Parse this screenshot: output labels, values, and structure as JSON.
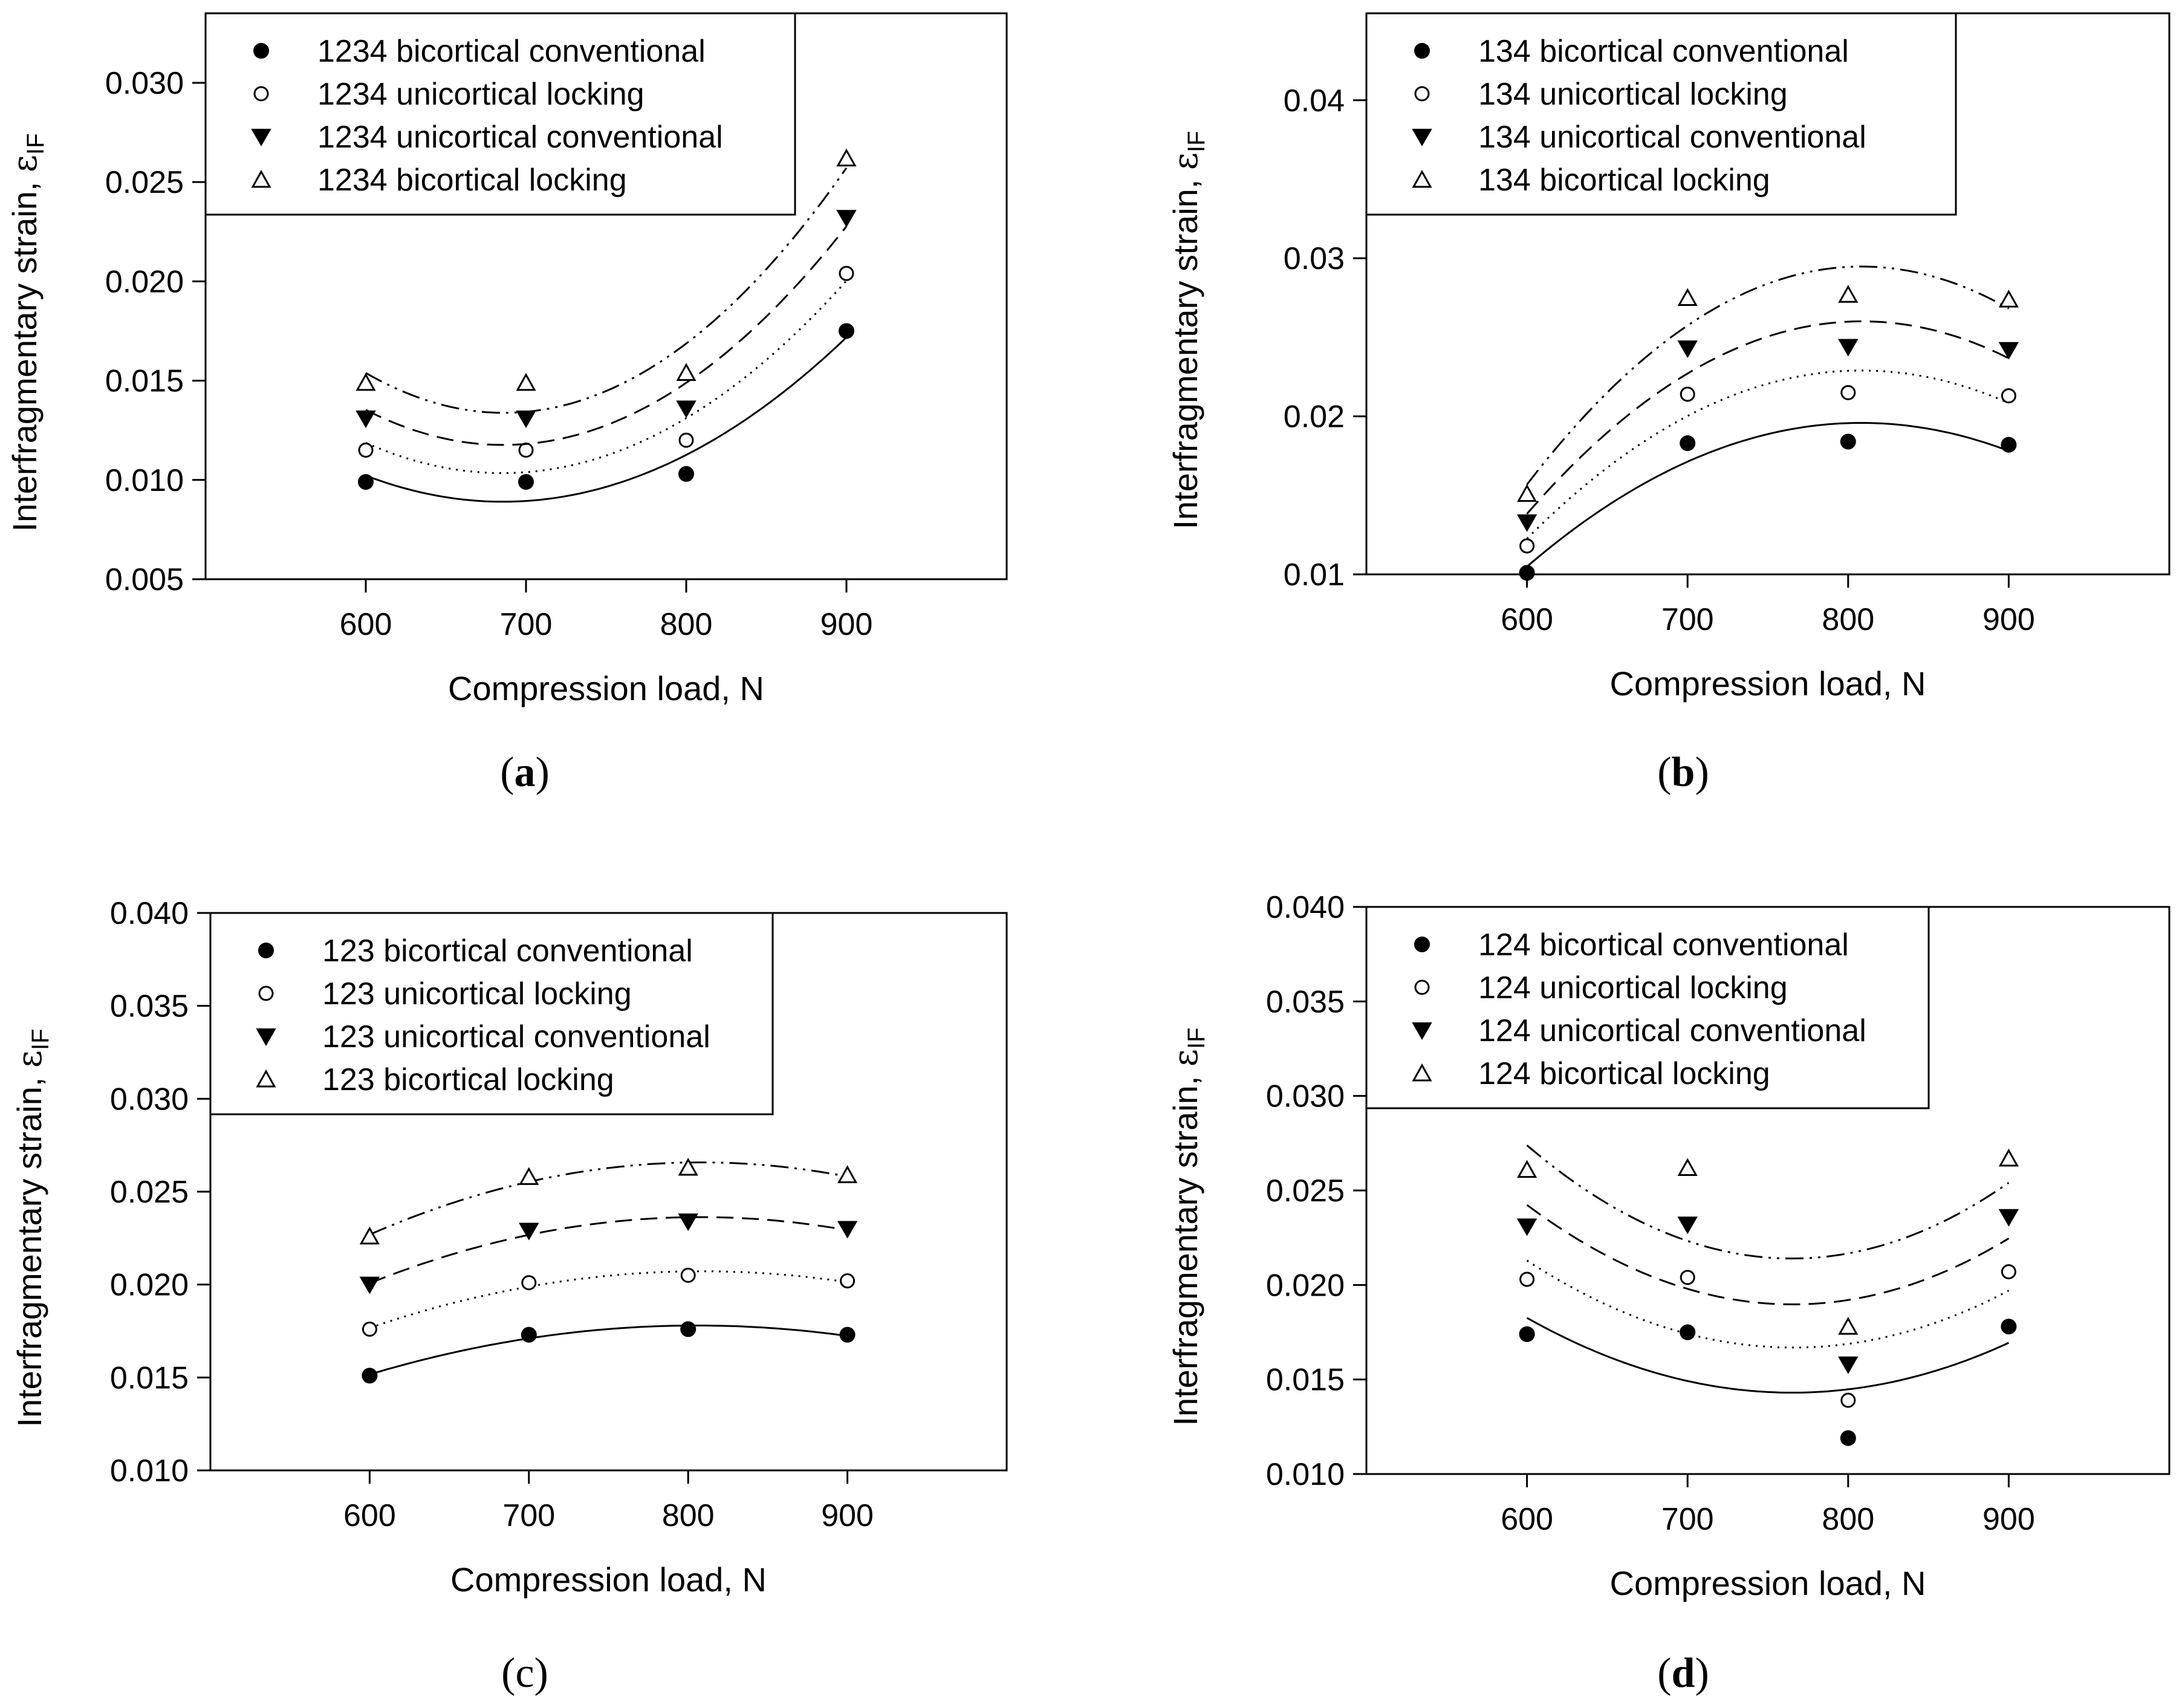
{
  "chart_data": [
    {
      "type": "scatter",
      "panel_label": "a",
      "xlabel": "Compression load, N",
      "ylabel_main": "Interfragmentary strain, ",
      "ylabel_symbol": "ε",
      "ylabel_sub": "IF",
      "x": [
        600,
        700,
        800,
        900
      ],
      "x_ticks": [
        600,
        700,
        800,
        900
      ],
      "y_ticks": [
        0.005,
        0.01,
        0.015,
        0.02,
        0.025,
        0.03
      ],
      "y_tick_labels": [
        "0.005",
        "0.010",
        "0.015",
        "0.020",
        "0.025",
        "0.030"
      ],
      "xlim": [
        500,
        1000
      ],
      "ylim": [
        0.005,
        0.0335
      ],
      "legend_position": "top-left",
      "series": [
        {
          "name": "1234 bicortical conventional",
          "marker": "filled-circle",
          "line": "solid",
          "values": [
            0.0099,
            0.0099,
            0.0103,
            0.0175
          ]
        },
        {
          "name": "1234 unicortical locking",
          "marker": "open-circle",
          "line": "dotted",
          "values": [
            0.0115,
            0.0115,
            0.012,
            0.0204
          ]
        },
        {
          "name": "1234 unicortical conventional",
          "marker": "filled-triangle-down",
          "line": "dashed",
          "values": [
            0.0131,
            0.0131,
            0.0136,
            0.0232
          ]
        },
        {
          "name": "1234 bicortical locking",
          "marker": "open-triangle-up",
          "line": "dash-dot-dot",
          "values": [
            0.0149,
            0.0149,
            0.0154,
            0.0262
          ]
        }
      ]
    },
    {
      "type": "scatter",
      "panel_label": "b",
      "xlabel": "Compression load, N",
      "ylabel_main": "Interfragmentary strain, ",
      "ylabel_symbol": "ε",
      "ylabel_sub": "IF",
      "x": [
        600,
        700,
        800,
        900
      ],
      "x_ticks": [
        600,
        700,
        800,
        900
      ],
      "y_ticks": [
        0.01,
        0.02,
        0.03,
        0.04
      ],
      "y_tick_labels": [
        "0.01",
        "0.02",
        "0.03",
        "0.04"
      ],
      "xlim": [
        500,
        1000
      ],
      "ylim": [
        0.01,
        0.0455
      ],
      "legend_position": "top-left",
      "series": [
        {
          "name": "134 bicortical conventional",
          "marker": "filled-circle",
          "line": "solid",
          "values": [
            0.0101,
            0.0183,
            0.0184,
            0.0182
          ]
        },
        {
          "name": "134 unicortical locking",
          "marker": "open-circle",
          "line": "dotted",
          "values": [
            0.0118,
            0.0214,
            0.0215,
            0.0213
          ]
        },
        {
          "name": "134 unicortical conventional",
          "marker": "filled-triangle-down",
          "line": "dashed",
          "values": [
            0.0133,
            0.0243,
            0.0244,
            0.0242
          ]
        },
        {
          "name": "134 bicortical locking",
          "marker": "open-triangle-up",
          "line": "dash-dot-dot",
          "values": [
            0.0151,
            0.0275,
            0.0277,
            0.0274
          ]
        }
      ]
    },
    {
      "type": "scatter",
      "panel_label": "c",
      "xlabel": "Compression load, N",
      "ylabel_main": "Interfragmentary strain, ",
      "ylabel_symbol": "ε",
      "ylabel_sub": "IF",
      "x": [
        600,
        700,
        800,
        900
      ],
      "x_ticks": [
        600,
        700,
        800,
        900
      ],
      "y_ticks": [
        0.01,
        0.015,
        0.02,
        0.025,
        0.03,
        0.035,
        0.04
      ],
      "y_tick_labels": [
        "0.010",
        "0.015",
        "0.020",
        "0.025",
        "0.030",
        "0.035",
        "0.040"
      ],
      "xlim": [
        500,
        1000
      ],
      "ylim": [
        0.01,
        0.04
      ],
      "legend_position": "top-left",
      "series": [
        {
          "name": "123 bicortical conventional",
          "marker": "filled-circle",
          "line": "solid",
          "values": [
            0.0151,
            0.0173,
            0.0176,
            0.0173
          ]
        },
        {
          "name": "123 unicortical locking",
          "marker": "open-circle",
          "line": "dotted",
          "values": [
            0.0176,
            0.0201,
            0.0205,
            0.0202
          ]
        },
        {
          "name": "123 unicortical conventional",
          "marker": "filled-triangle-down",
          "line": "dashed",
          "values": [
            0.02,
            0.0229,
            0.0234,
            0.023
          ]
        },
        {
          "name": "123 bicortical locking",
          "marker": "open-triangle-up",
          "line": "dash-dot-dot",
          "values": [
            0.0226,
            0.0258,
            0.0263,
            0.0259
          ]
        }
      ]
    },
    {
      "type": "scatter",
      "panel_label": "d",
      "xlabel": "Compression load, N",
      "ylabel_main": "Interfragmentary strain, ",
      "ylabel_symbol": "ε",
      "ylabel_sub": "IF",
      "x": [
        600,
        700,
        800,
        900
      ],
      "x_ticks": [
        600,
        700,
        800,
        900
      ],
      "y_ticks": [
        0.01,
        0.015,
        0.02,
        0.025,
        0.03,
        0.035,
        0.04
      ],
      "y_tick_labels": [
        "0.010",
        "0.015",
        "0.020",
        "0.025",
        "0.030",
        "0.035",
        "0.040"
      ],
      "xlim": [
        500,
        1000
      ],
      "ylim": [
        0.01,
        0.04
      ],
      "legend_position": "top-left",
      "series": [
        {
          "name": "124 bicortical conventional",
          "marker": "filled-circle",
          "line": "solid",
          "values": [
            0.0174,
            0.0175,
            0.0119,
            0.0178
          ]
        },
        {
          "name": "124 unicortical locking",
          "marker": "open-circle",
          "line": "dotted",
          "values": [
            0.0203,
            0.0204,
            0.0139,
            0.0207
          ]
        },
        {
          "name": "124 unicortical conventional",
          "marker": "filled-triangle-down",
          "line": "dashed",
          "values": [
            0.0231,
            0.0232,
            0.0158,
            0.0236
          ]
        },
        {
          "name": "124 bicortical locking",
          "marker": "open-triangle-up",
          "line": "dash-dot-dot",
          "values": [
            0.0261,
            0.0262,
            0.0178,
            0.0267
          ]
        }
      ]
    }
  ]
}
